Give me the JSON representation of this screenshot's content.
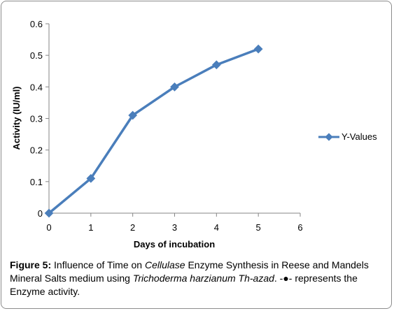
{
  "chart_data": {
    "type": "line",
    "x": [
      0,
      1,
      2,
      3,
      4,
      5
    ],
    "series": [
      {
        "name": "Y-Values",
        "values": [
          0,
          0.11,
          0.31,
          0.4,
          0.47,
          0.52
        ],
        "color": "#4a7ebb",
        "marker": "diamond"
      }
    ],
    "xlabel": "Days of incubation",
    "ylabel": "Activity (IU/ml)",
    "xlim": [
      0,
      6
    ],
    "ylim": [
      0,
      0.6
    ],
    "xticks": [
      "0",
      "1",
      "2",
      "3",
      "4",
      "5",
      "6"
    ],
    "yticks": [
      "0",
      "0.1",
      "0.2",
      "0.3",
      "0.4",
      "0.5",
      "0.6"
    ],
    "grid": false,
    "legend_position": "right"
  },
  "caption": {
    "label": "Figure 5:",
    "text_1": " Influence of Time on ",
    "italic_1": "Cellulase",
    "text_2": " Enzyme Synthesis in Reese and Mandels Mineral Salts medium using ",
    "italic_2": "Trichoderma harzianum Th-azad",
    "text_3": ". -●- represents the Enzyme activity."
  }
}
